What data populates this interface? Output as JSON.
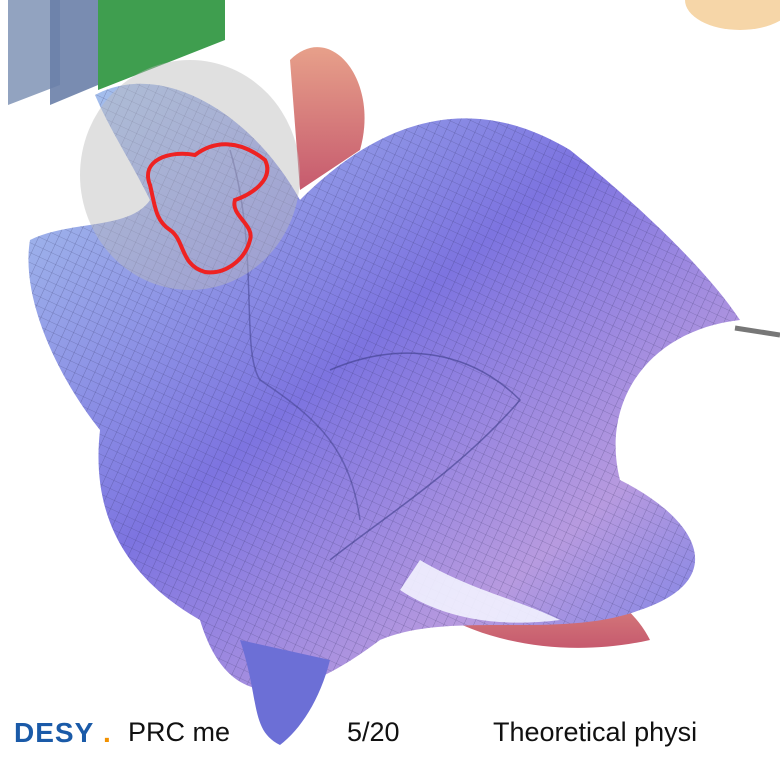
{
  "footer": {
    "logo": "DESY",
    "logo_dot": ".",
    "segments": [
      "PRC me",
      "5/20",
      "Theoretical physi"
    ]
  }
}
